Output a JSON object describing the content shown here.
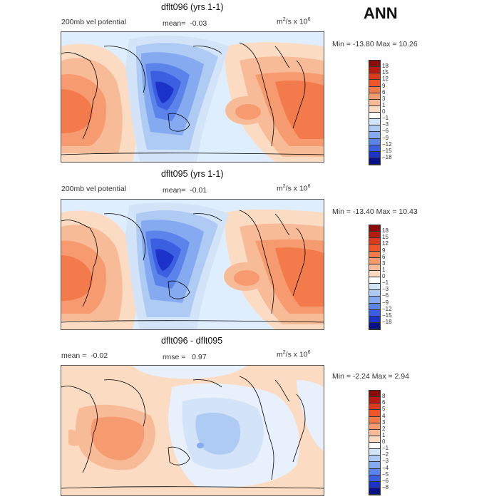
{
  "header": {
    "season": "ANN"
  },
  "panels": [
    {
      "title": "dflt096 (yrs 1-1)",
      "left_label": "200mb vel potential",
      "mean_label": "mean=",
      "mean_value": "-0.03",
      "units_base": "m",
      "units_mid": "/s x 10",
      "units_exp_1": "2",
      "units_exp_2": "6",
      "minmax": "Min = -13.80 Max =  10.26",
      "colorbar": {
        "labels": [
          "18",
          "15",
          "12",
          "9",
          "6",
          "3",
          "1",
          "0",
          "-1",
          "-3",
          "-6",
          "-9",
          "-12",
          "-15",
          "-18"
        ],
        "colors": [
          "#8a0c0c",
          "#b81a12",
          "#db3a1c",
          "#f0562a",
          "#f37a4b",
          "#f69b70",
          "#f8bb98",
          "#fbdcc2",
          "#ffffff",
          "#d3e4f8",
          "#aecbf4",
          "#86aaf0",
          "#5b84ea",
          "#3a5fe0",
          "#1b33c8",
          "#071289"
        ]
      }
    },
    {
      "title": "dflt095 (yrs 1-1)",
      "left_label": "200mb vel potential",
      "mean_label": "mean=",
      "mean_value": "-0.01",
      "units_base": "m",
      "units_mid": "/s x 10",
      "units_exp_1": "2",
      "units_exp_2": "6",
      "minmax": "Min = -13.40 Max =  10.43",
      "colorbar": {
        "labels": [
          "18",
          "15",
          "12",
          "9",
          "6",
          "3",
          "1",
          "0",
          "-1",
          "-3",
          "-6",
          "-9",
          "-12",
          "-15",
          "-18"
        ],
        "colors": [
          "#8a0c0c",
          "#b81a12",
          "#db3a1c",
          "#f0562a",
          "#f37a4b",
          "#f69b70",
          "#f8bb98",
          "#fbdcc2",
          "#ffffff",
          "#d3e4f8",
          "#aecbf4",
          "#86aaf0",
          "#5b84ea",
          "#3a5fe0",
          "#1b33c8",
          "#071289"
        ]
      }
    },
    {
      "title": "dflt096 - dflt095",
      "left_label": "mean =",
      "mean_value": "-0.02",
      "rmse_label": "rmse =",
      "rmse_value": "0.97",
      "units_base": "m",
      "units_mid": "/s x 10",
      "units_exp_1": "2",
      "units_exp_2": "6",
      "minmax": "Min =  -2.24 Max =   2.94",
      "colorbar": {
        "labels": [
          "8",
          "6",
          "5",
          "4",
          "3",
          "2",
          "1",
          "0",
          "-1",
          "-2",
          "-3",
          "-4",
          "-5",
          "-6",
          "-8"
        ],
        "colors": [
          "#8a0c0c",
          "#b81a12",
          "#db3a1c",
          "#f0562a",
          "#f37a4b",
          "#f69b70",
          "#f8bb98",
          "#fbdcc2",
          "#ffffff",
          "#d3e4f8",
          "#aecbf4",
          "#86aaf0",
          "#5b84ea",
          "#3a5fe0",
          "#1b33c8",
          "#071289"
        ]
      }
    }
  ]
}
